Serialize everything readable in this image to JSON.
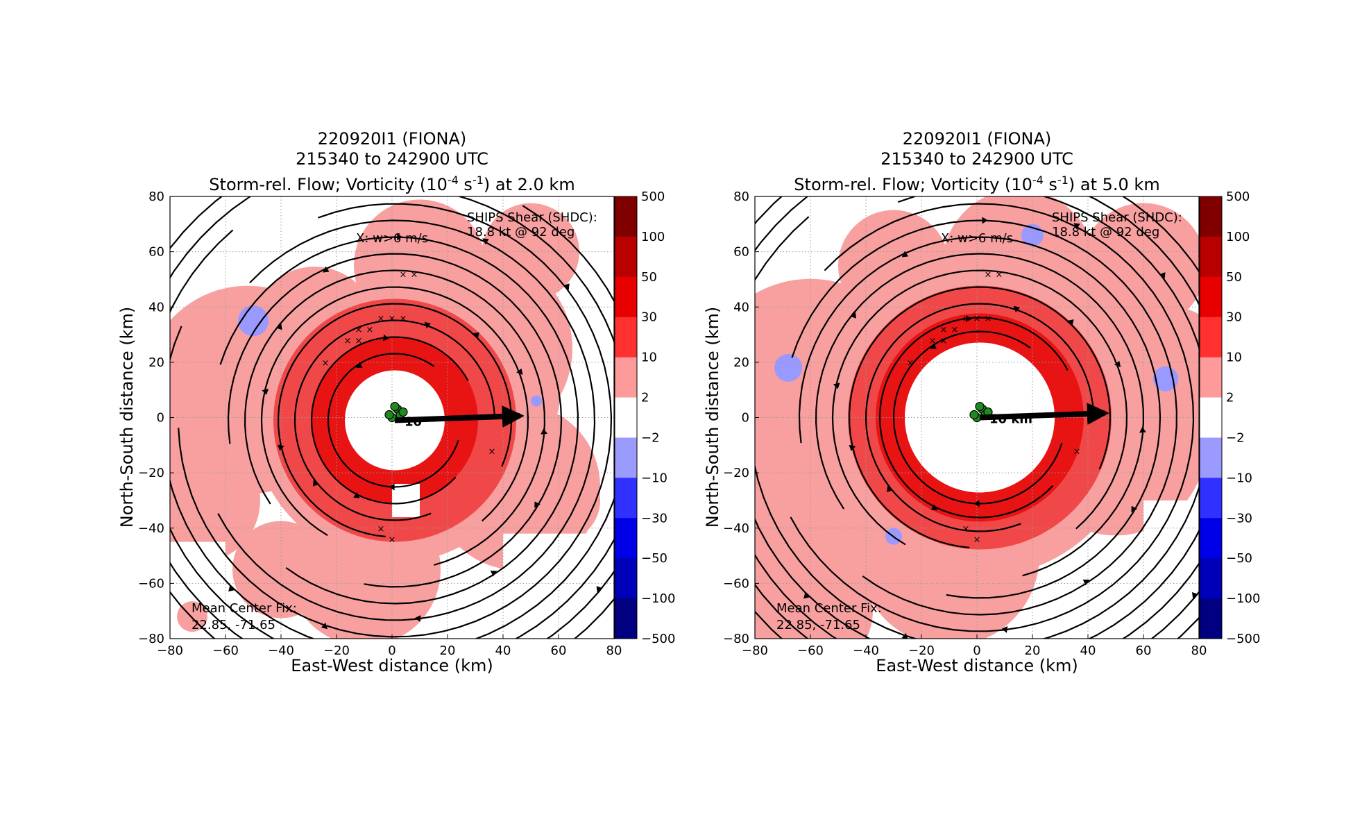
{
  "colorbar": {
    "labels": [
      "500",
      "100",
      "50",
      "30",
      "10",
      "2",
      "−2",
      "−10",
      "−30",
      "−50",
      "−100",
      "−500"
    ],
    "colors": [
      "#800000",
      "#b80000",
      "#e80000",
      "#ff3030",
      "#ff9a9a",
      "#ffffff",
      "#9a9aff",
      "#3030ff",
      "#0000e8",
      "#0000b8",
      "#000080"
    ]
  },
  "colors": {
    "vort_light": "#f8a0a0",
    "vort_mid": "#f04848",
    "vort_strong": "#e81414",
    "neg_vort": "#9999ff",
    "streamline": "#000000",
    "center_fix": "#1f8a1f",
    "grid": "#999999"
  },
  "chart_data": [
    {
      "type": "heatmap",
      "panel": "left",
      "title_lines": [
        "220920I1 (FIONA)",
        "215340 to 242900 UTC",
        "Storm-rel. Flow; Vorticity (10",
        "-4",
        " s",
        "-1",
        ") at 2.0 km"
      ],
      "title": {
        "l1": "220920I1 (FIONA)",
        "l2": "215340 to 242900 UTC",
        "l3a": "Storm-rel. Flow; Vorticity (10",
        "sup1": "-4",
        "l3b": " s",
        "sup2": "-1",
        "l3c": ") at 2.0 km"
      },
      "xlabel": "East-West distance (km)",
      "ylabel": "North-South distance (km)",
      "xlim": [
        -80,
        80
      ],
      "ylim": [
        -80,
        80
      ],
      "xticks": [
        "−80",
        "−60",
        "−40",
        "−20",
        "0",
        "20",
        "40",
        "60",
        "80"
      ],
      "yticks": [
        "80",
        "60",
        "40",
        "20",
        "0",
        "−20",
        "−40",
        "−60",
        "−80"
      ],
      "grid": true,
      "height_km": 2.0,
      "eye_radius_km": 18,
      "eye_center_km": [
        1,
        -1
      ],
      "annotations": {
        "w_marker": "X: w>6 m/s",
        "shear_l1": "SHIPS Shear (SHDC):",
        "shear_l2": "18.8 kt @ 92 deg",
        "center_l1": "Mean Center Fix:",
        "center_l2": "22.85, -71.65",
        "vector_label": "10"
      },
      "shear_vector": {
        "kt": 18.8,
        "deg": 92
      },
      "w_points_km": [
        [
          4,
          52
        ],
        [
          8,
          52
        ],
        [
          -4,
          36
        ],
        [
          0,
          36
        ],
        [
          4,
          36
        ],
        [
          -12,
          32
        ],
        [
          -8,
          32
        ],
        [
          -16,
          28
        ],
        [
          -12,
          28
        ],
        [
          -24,
          20
        ],
        [
          36,
          -12
        ],
        [
          -4,
          -40
        ],
        [
          0,
          -44
        ]
      ]
    },
    {
      "type": "heatmap",
      "panel": "right",
      "title": {
        "l1": "220920I1 (FIONA)",
        "l2": "215340 to 242900 UTC",
        "l3a": "Storm-rel. Flow; Vorticity (10",
        "sup1": "-4",
        "l3b": " s",
        "sup2": "-1",
        "l3c": ") at 5.0 km"
      },
      "xlabel": "East-West distance (km)",
      "ylabel": "North-South distance (km)",
      "xlim": [
        -80,
        80
      ],
      "ylim": [
        -80,
        80
      ],
      "xticks": [
        "−80",
        "−60",
        "−40",
        "−20",
        "0",
        "20",
        "40",
        "60",
        "80"
      ],
      "yticks": [
        "80",
        "60",
        "40",
        "20",
        "0",
        "−20",
        "−40",
        "−60",
        "−80"
      ],
      "grid": true,
      "height_km": 5.0,
      "eye_radius_km": 27,
      "eye_center_km": [
        1,
        0
      ],
      "annotations": {
        "w_marker": "X: w>6 m/s",
        "shear_l1": "SHIPS Shear (SHDC):",
        "shear_l2": "18.8 kt @ 92 deg",
        "center_l1": "Mean Center Fix:",
        "center_l2": "22.85, -71.65",
        "vector_label": "10 km"
      },
      "shear_vector": {
        "kt": 18.8,
        "deg": 92
      },
      "w_points_km": [
        [
          4,
          52
        ],
        [
          8,
          52
        ],
        [
          -4,
          36
        ],
        [
          0,
          36
        ],
        [
          4,
          36
        ],
        [
          -12,
          32
        ],
        [
          -8,
          32
        ],
        [
          -16,
          28
        ],
        [
          -12,
          28
        ],
        [
          -24,
          20
        ],
        [
          36,
          -12
        ],
        [
          -4,
          -40
        ],
        [
          0,
          -44
        ]
      ]
    }
  ]
}
